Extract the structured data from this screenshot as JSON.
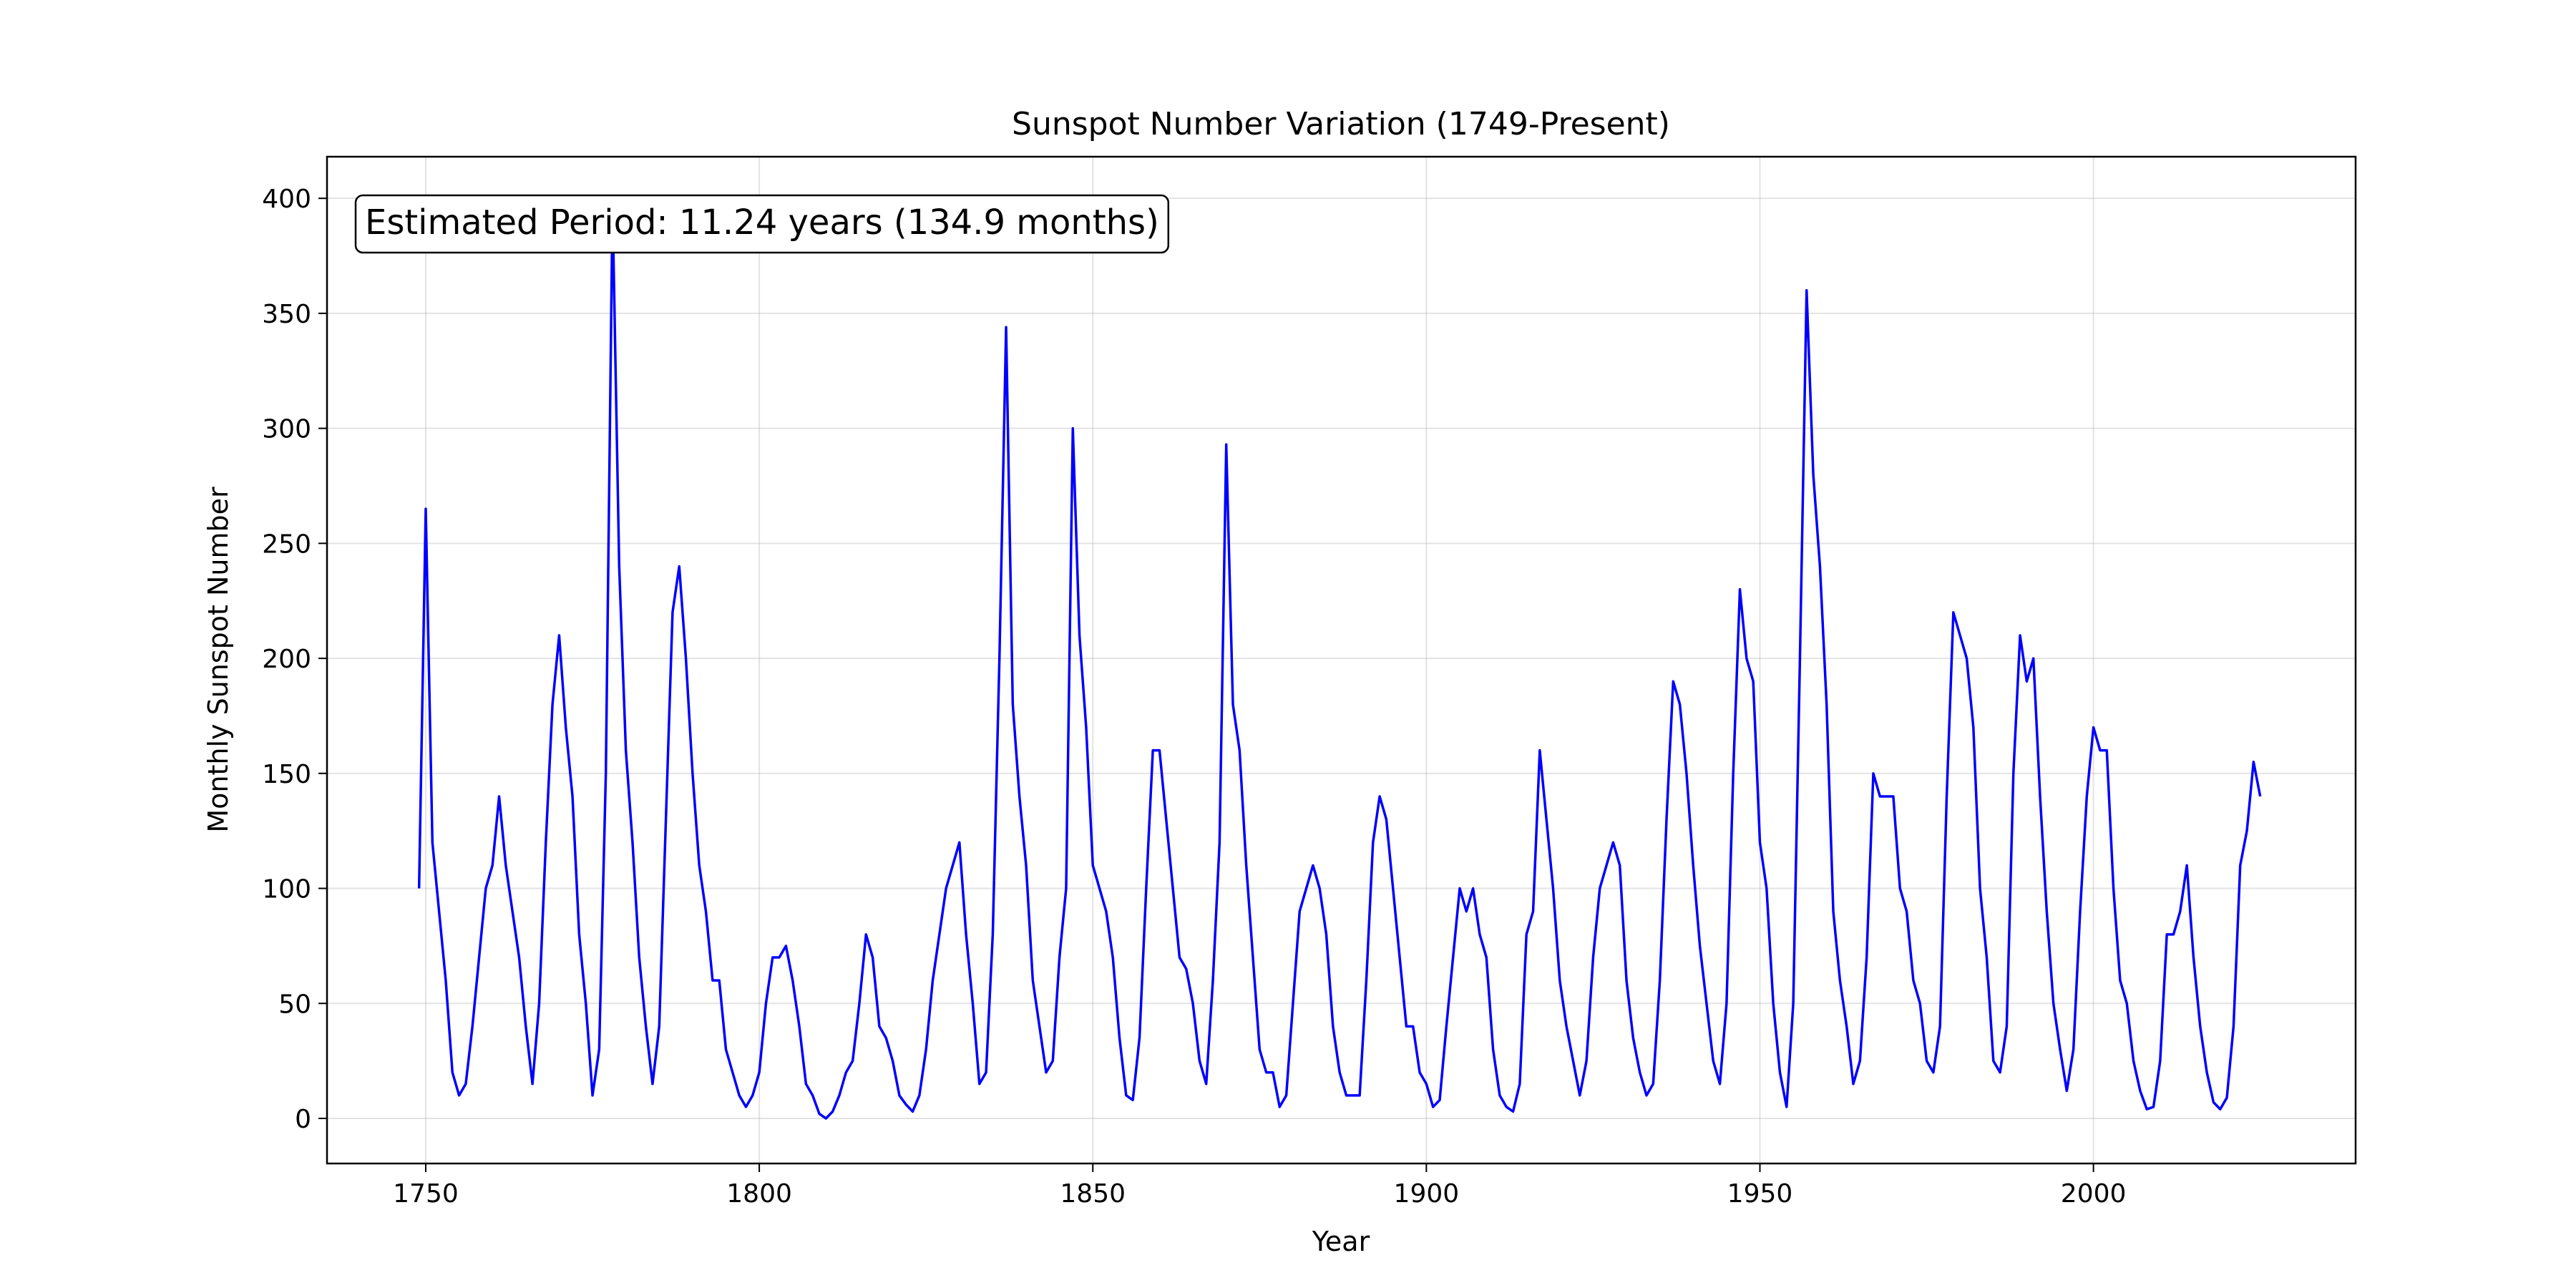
{
  "chart_data": {
    "type": "line",
    "title": "Sunspot Number Variation (1749-Present)",
    "xlabel": "Year",
    "ylabel": "Monthly Sunspot Number",
    "annotation": "Estimated Period: 11.24 years (134.9 months)",
    "color": "#0000ff",
    "grid": true,
    "xlim": [
      1735.2,
      2039.3
    ],
    "ylim": [
      -19.6,
      418.1
    ],
    "xticks": [
      1750,
      1800,
      1850,
      1900,
      1950,
      2000
    ],
    "yticks": [
      0,
      50,
      100,
      150,
      200,
      250,
      300,
      350,
      400
    ],
    "x": [
      1749,
      1750,
      1751,
      1752,
      1753,
      1754,
      1755,
      1756,
      1757,
      1758,
      1759,
      1760,
      1761,
      1762,
      1763,
      1764,
      1765,
      1766,
      1767,
      1768,
      1769,
      1770,
      1771,
      1772,
      1773,
      1774,
      1775,
      1776,
      1777,
      1778,
      1779,
      1780,
      1781,
      1782,
      1783,
      1784,
      1785,
      1786,
      1787,
      1788,
      1789,
      1790,
      1791,
      1792,
      1793,
      1794,
      1795,
      1796,
      1797,
      1798,
      1799,
      1800,
      1801,
      1802,
      1803,
      1804,
      1805,
      1806,
      1807,
      1808,
      1809,
      1810,
      1811,
      1812,
      1813,
      1814,
      1815,
      1816,
      1817,
      1818,
      1819,
      1820,
      1821,
      1822,
      1823,
      1824,
      1825,
      1826,
      1827,
      1828,
      1829,
      1830,
      1831,
      1832,
      1833,
      1834,
      1835,
      1836,
      1837,
      1838,
      1839,
      1840,
      1841,
      1842,
      1843,
      1844,
      1845,
      1846,
      1847,
      1848,
      1849,
      1850,
      1851,
      1852,
      1853,
      1854,
      1855,
      1856,
      1857,
      1858,
      1859,
      1860,
      1861,
      1862,
      1863,
      1864,
      1865,
      1866,
      1867,
      1868,
      1869,
      1870,
      1871,
      1872,
      1873,
      1874,
      1875,
      1876,
      1877,
      1878,
      1879,
      1880,
      1881,
      1882,
      1883,
      1884,
      1885,
      1886,
      1887,
      1888,
      1889,
      1890,
      1891,
      1892,
      1893,
      1894,
      1895,
      1896,
      1897,
      1898,
      1899,
      1900,
      1901,
      1902,
      1903,
      1904,
      1905,
      1906,
      1907,
      1908,
      1909,
      1910,
      1911,
      1912,
      1913,
      1914,
      1915,
      1916,
      1917,
      1918,
      1919,
      1920,
      1921,
      1922,
      1923,
      1924,
      1925,
      1926,
      1927,
      1928,
      1929,
      1930,
      1931,
      1932,
      1933,
      1934,
      1935,
      1936,
      1937,
      1938,
      1939,
      1940,
      1941,
      1942,
      1943,
      1944,
      1945,
      1946,
      1947,
      1948,
      1949,
      1950,
      1951,
      1952,
      1953,
      1954,
      1955,
      1956,
      1957,
      1958,
      1959,
      1960,
      1961,
      1962,
      1963,
      1964,
      1965,
      1966,
      1967,
      1968,
      1969,
      1970,
      1971,
      1972,
      1973,
      1974,
      1975,
      1976,
      1977,
      1978,
      1979,
      1980,
      1981,
      1982,
      1983,
      1984,
      1985,
      1986,
      1987,
      1988,
      1989,
      1990,
      1991,
      1992,
      1993,
      1994,
      1995,
      1996,
      1997,
      1998,
      1999,
      2000,
      2001,
      2002,
      2003,
      2004,
      2005,
      2006,
      2007,
      2008,
      2009,
      2010,
      2011,
      2012,
      2013,
      2014,
      2015,
      2016,
      2017,
      2018,
      2019,
      2020,
      2021,
      2022,
      2023,
      2024,
      2025
    ],
    "values": [
      100,
      265,
      120,
      90,
      60,
      20,
      10,
      15,
      40,
      70,
      100,
      110,
      140,
      110,
      90,
      70,
      40,
      15,
      50,
      120,
      180,
      210,
      170,
      140,
      80,
      50,
      10,
      30,
      150,
      398,
      240,
      160,
      120,
      70,
      40,
      15,
      40,
      130,
      220,
      240,
      200,
      150,
      110,
      90,
      60,
      60,
      30,
      20,
      10,
      5,
      10,
      20,
      50,
      70,
      70,
      75,
      60,
      40,
      15,
      10,
      2,
      0,
      3,
      10,
      20,
      25,
      50,
      80,
      70,
      40,
      35,
      25,
      10,
      6,
      3,
      10,
      30,
      60,
      80,
      100,
      110,
      120,
      80,
      50,
      15,
      20,
      80,
      200,
      344,
      180,
      140,
      110,
      60,
      40,
      20,
      25,
      70,
      100,
      300,
      210,
      170,
      110,
      100,
      90,
      70,
      35,
      10,
      8,
      35,
      100,
      160,
      160,
      130,
      100,
      70,
      65,
      50,
      25,
      15,
      60,
      120,
      293,
      180,
      160,
      110,
      70,
      30,
      20,
      20,
      5,
      10,
      50,
      90,
      100,
      110,
      100,
      80,
      40,
      20,
      10,
      10,
      10,
      60,
      120,
      140,
      130,
      100,
      70,
      40,
      40,
      20,
      15,
      5,
      8,
      40,
      70,
      100,
      90,
      100,
      80,
      70,
      30,
      10,
      5,
      3,
      15,
      80,
      90,
      160,
      130,
      100,
      60,
      40,
      25,
      10,
      25,
      70,
      100,
      110,
      120,
      110,
      60,
      35,
      20,
      10,
      15,
      60,
      130,
      190,
      180,
      150,
      110,
      75,
      50,
      25,
      15,
      50,
      150,
      230,
      200,
      190,
      120,
      100,
      50,
      20,
      5,
      50,
      200,
      360,
      280,
      240,
      180,
      90,
      60,
      40,
      15,
      25,
      70,
      150,
      140,
      140,
      140,
      100,
      90,
      60,
      50,
      25,
      20,
      40,
      140,
      220,
      210,
      200,
      170,
      100,
      70,
      25,
      20,
      40,
      150,
      210,
      190,
      200,
      140,
      90,
      50,
      30,
      12,
      30,
      90,
      140,
      170,
      160,
      160,
      100,
      60,
      50,
      25,
      12,
      4,
      5,
      25,
      80,
      80,
      90,
      110,
      70,
      40,
      20,
      7,
      4,
      9,
      40,
      110,
      125,
      155,
      140
    ]
  }
}
